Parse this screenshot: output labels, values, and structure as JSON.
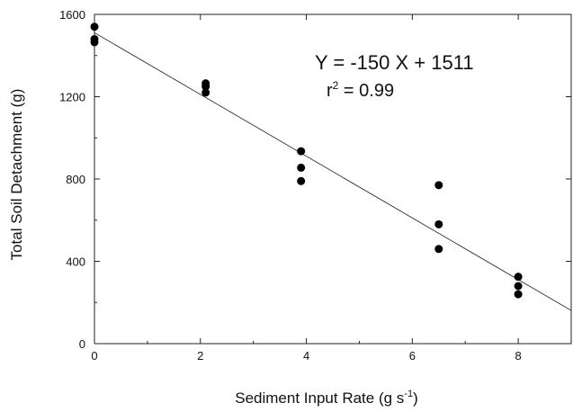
{
  "chart_data": {
    "type": "scatter",
    "xlabel": "Sediment Input Rate (g s",
    "xlabel_sup": "-1",
    "xlabel_end": ")",
    "ylabel": "Total Soil Detachment (g)",
    "xlim": [
      0,
      9
    ],
    "ylim": [
      0,
      1600
    ],
    "xticks": [
      0,
      2,
      4,
      6,
      8
    ],
    "yticks": [
      0,
      400,
      800,
      1200,
      1600
    ],
    "grid": false,
    "series": [
      {
        "points": [
          {
            "x": 0,
            "y": 1540
          },
          {
            "x": 0,
            "y": 1480
          },
          {
            "x": 0,
            "y": 1465
          },
          {
            "x": 2.1,
            "y": 1265
          },
          {
            "x": 2.1,
            "y": 1250
          },
          {
            "x": 2.1,
            "y": 1220
          },
          {
            "x": 3.9,
            "y": 935
          },
          {
            "x": 3.9,
            "y": 855
          },
          {
            "x": 3.9,
            "y": 790
          },
          {
            "x": 6.5,
            "y": 770
          },
          {
            "x": 6.5,
            "y": 580
          },
          {
            "x": 6.5,
            "y": 460
          },
          {
            "x": 8,
            "y": 325
          },
          {
            "x": 8,
            "y": 280
          },
          {
            "x": 8,
            "y": 240
          }
        ]
      }
    ],
    "regression": {
      "slope": -150,
      "intercept": 1511
    },
    "annotations": {
      "equation": "Y = -150 X + 1511",
      "r2_prefix": "r",
      "r2_sup": "2",
      "r2_value": " = 0.99"
    }
  }
}
